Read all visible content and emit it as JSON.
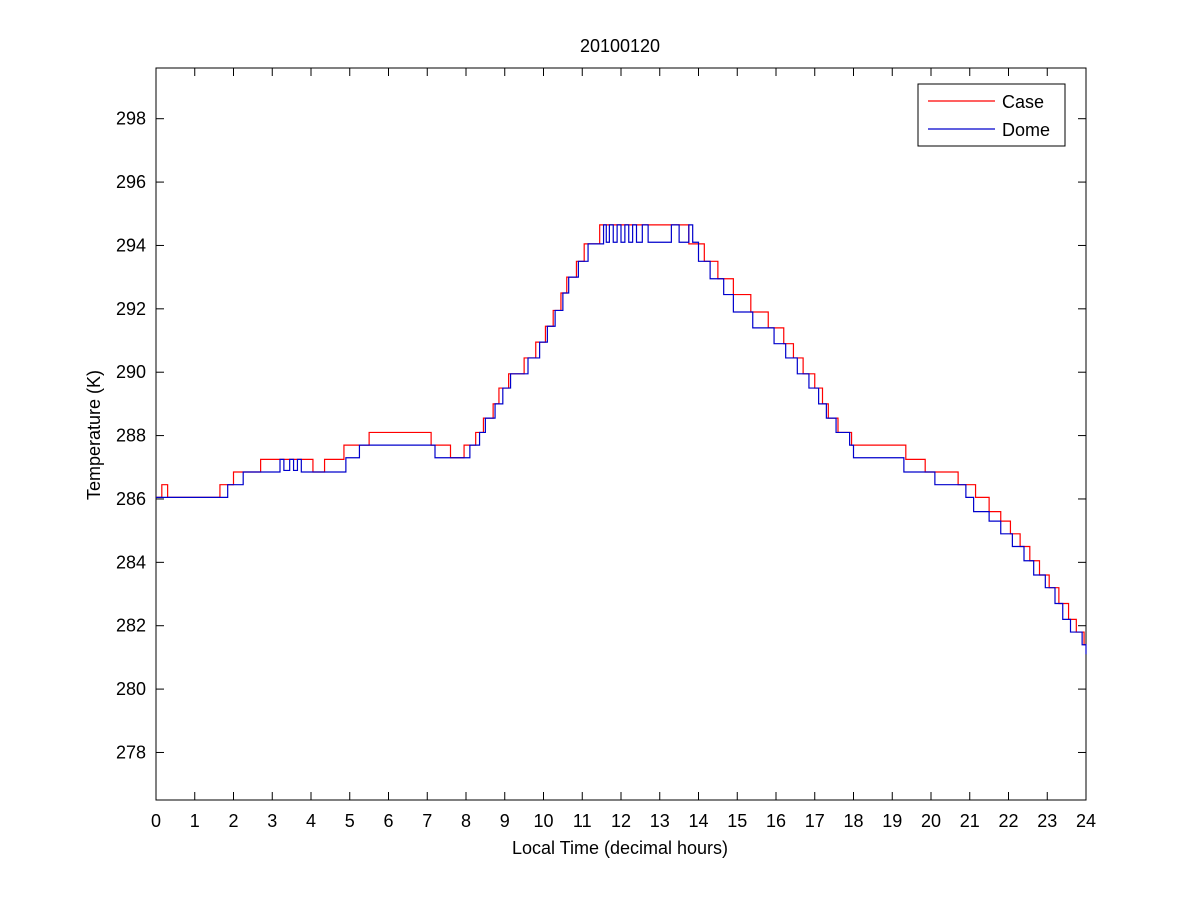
{
  "chart_data": {
    "type": "line",
    "title": "20100120",
    "xlabel": "Local Time (decimal hours)",
    "ylabel": "Temperature (K)",
    "xlim": [
      0,
      24
    ],
    "ylim": [
      276.5,
      299.6
    ],
    "x_ticks": [
      0,
      1,
      2,
      3,
      4,
      5,
      6,
      7,
      8,
      9,
      10,
      11,
      12,
      13,
      14,
      15,
      16,
      17,
      18,
      19,
      20,
      21,
      22,
      23,
      24
    ],
    "y_ticks": [
      278,
      280,
      282,
      284,
      286,
      288,
      290,
      292,
      294,
      296,
      298
    ],
    "grid": false,
    "legend_position": "top-right",
    "step": true,
    "series": [
      {
        "name": "Case",
        "color": "#ff0000",
        "points": [
          [
            0.0,
            286.05
          ],
          [
            0.15,
            286.45
          ],
          [
            0.3,
            286.05
          ],
          [
            1.65,
            286.45
          ],
          [
            2.0,
            286.85
          ],
          [
            2.7,
            287.25
          ],
          [
            4.05,
            286.85
          ],
          [
            4.35,
            287.25
          ],
          [
            4.85,
            287.7
          ],
          [
            5.5,
            288.1
          ],
          [
            7.1,
            287.7
          ],
          [
            7.6,
            287.3
          ],
          [
            7.95,
            287.7
          ],
          [
            8.25,
            288.1
          ],
          [
            8.45,
            288.55
          ],
          [
            8.7,
            289.0
          ],
          [
            8.85,
            289.5
          ],
          [
            9.1,
            289.95
          ],
          [
            9.5,
            290.45
          ],
          [
            9.8,
            290.95
          ],
          [
            10.05,
            291.45
          ],
          [
            10.25,
            291.95
          ],
          [
            10.45,
            292.5
          ],
          [
            10.6,
            293.0
          ],
          [
            10.85,
            293.5
          ],
          [
            11.05,
            294.05
          ],
          [
            11.45,
            294.65
          ],
          [
            13.75,
            294.05
          ],
          [
            14.15,
            293.5
          ],
          [
            14.5,
            292.95
          ],
          [
            14.9,
            292.45
          ],
          [
            15.35,
            291.9
          ],
          [
            15.8,
            291.4
          ],
          [
            16.2,
            290.9
          ],
          [
            16.45,
            290.45
          ],
          [
            16.7,
            289.95
          ],
          [
            17.0,
            289.5
          ],
          [
            17.2,
            289.0
          ],
          [
            17.35,
            288.55
          ],
          [
            17.6,
            288.1
          ],
          [
            17.95,
            287.7
          ],
          [
            19.35,
            287.25
          ],
          [
            19.85,
            286.85
          ],
          [
            20.7,
            286.45
          ],
          [
            21.15,
            286.05
          ],
          [
            21.5,
            285.6
          ],
          [
            21.8,
            285.3
          ],
          [
            22.05,
            284.9
          ],
          [
            22.3,
            284.5
          ],
          [
            22.55,
            284.05
          ],
          [
            22.8,
            283.6
          ],
          [
            23.05,
            283.2
          ],
          [
            23.3,
            282.7
          ],
          [
            23.55,
            282.2
          ],
          [
            23.75,
            281.8
          ],
          [
            23.95,
            281.4
          ],
          [
            24.0,
            281.4
          ]
        ]
      },
      {
        "name": "Dome",
        "color": "#0000cc",
        "points": [
          [
            0.0,
            286.05
          ],
          [
            1.85,
            286.45
          ],
          [
            2.25,
            286.85
          ],
          [
            3.2,
            287.25
          ],
          [
            3.3,
            286.9
          ],
          [
            3.45,
            287.25
          ],
          [
            3.55,
            286.9
          ],
          [
            3.65,
            287.25
          ],
          [
            3.75,
            286.85
          ],
          [
            4.9,
            287.3
          ],
          [
            5.25,
            287.7
          ],
          [
            7.2,
            287.3
          ],
          [
            8.1,
            287.7
          ],
          [
            8.35,
            288.1
          ],
          [
            8.5,
            288.55
          ],
          [
            8.75,
            289.0
          ],
          [
            8.95,
            289.5
          ],
          [
            9.15,
            289.95
          ],
          [
            9.6,
            290.45
          ],
          [
            9.9,
            290.95
          ],
          [
            10.1,
            291.45
          ],
          [
            10.3,
            291.95
          ],
          [
            10.5,
            292.5
          ],
          [
            10.65,
            293.0
          ],
          [
            10.9,
            293.5
          ],
          [
            11.15,
            294.05
          ],
          [
            11.55,
            294.65
          ],
          [
            11.62,
            294.1
          ],
          [
            11.7,
            294.65
          ],
          [
            11.8,
            294.1
          ],
          [
            11.9,
            294.65
          ],
          [
            12.0,
            294.1
          ],
          [
            12.1,
            294.65
          ],
          [
            12.2,
            294.1
          ],
          [
            12.3,
            294.65
          ],
          [
            12.4,
            294.1
          ],
          [
            12.55,
            294.65
          ],
          [
            12.7,
            294.1
          ],
          [
            13.3,
            294.65
          ],
          [
            13.5,
            294.1
          ],
          [
            13.75,
            294.65
          ],
          [
            13.85,
            294.1
          ],
          [
            14.0,
            293.5
          ],
          [
            14.3,
            292.95
          ],
          [
            14.65,
            292.45
          ],
          [
            14.9,
            291.9
          ],
          [
            15.4,
            291.4
          ],
          [
            15.95,
            290.9
          ],
          [
            16.25,
            290.45
          ],
          [
            16.55,
            289.95
          ],
          [
            16.85,
            289.5
          ],
          [
            17.1,
            289.0
          ],
          [
            17.3,
            288.55
          ],
          [
            17.55,
            288.1
          ],
          [
            17.9,
            287.7
          ],
          [
            18.0,
            287.3
          ],
          [
            19.3,
            286.85
          ],
          [
            20.1,
            286.45
          ],
          [
            20.9,
            286.05
          ],
          [
            21.1,
            285.6
          ],
          [
            21.5,
            285.3
          ],
          [
            21.8,
            284.9
          ],
          [
            22.1,
            284.5
          ],
          [
            22.4,
            284.05
          ],
          [
            22.65,
            283.6
          ],
          [
            22.95,
            283.2
          ],
          [
            23.2,
            282.7
          ],
          [
            23.4,
            282.2
          ],
          [
            23.6,
            281.8
          ],
          [
            23.9,
            281.4
          ],
          [
            24.0,
            281.1
          ]
        ]
      }
    ]
  }
}
